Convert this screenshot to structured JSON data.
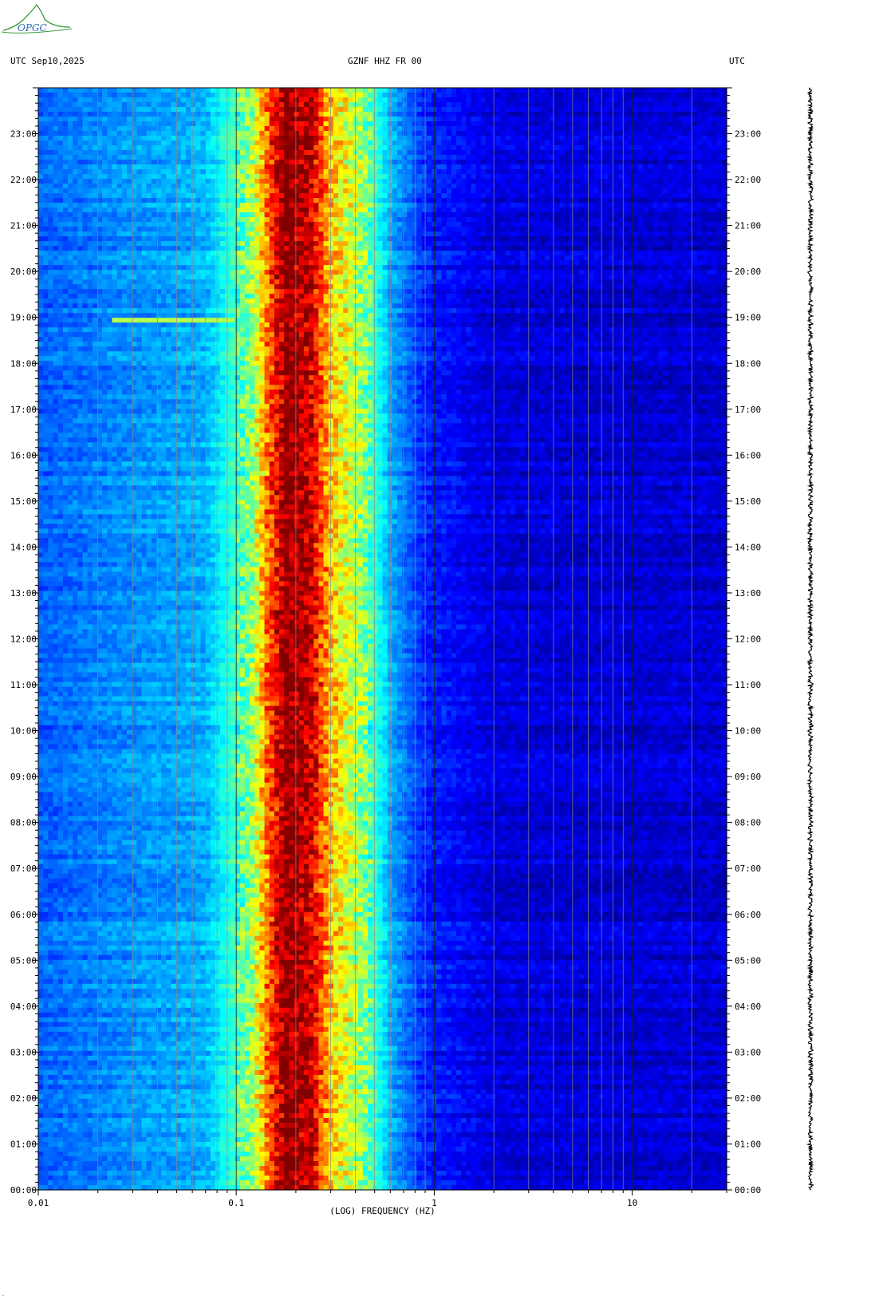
{
  "header": {
    "left_label": "UTC  Sep10,2025",
    "center_label": "GZNF HHZ FR 00",
    "right_label": "UTC"
  },
  "logo": {
    "text": "OPGC"
  },
  "colors": {
    "background": "#ffffff",
    "low": "#0018c8",
    "high": "#7a0000"
  },
  "chart_data": {
    "type": "heatmap",
    "title": "",
    "xlabel": "(LOG) FREQUENCY (HZ)",
    "ylabel": "",
    "x_scale": "log",
    "xlim": [
      0.01,
      30
    ],
    "ylim_hours": [
      0,
      24
    ],
    "x_ticks": [
      {
        "value": 0.01,
        "label": "0.01"
      },
      {
        "value": 0.1,
        "label": "0.1"
      },
      {
        "value": 1,
        "label": "1"
      },
      {
        "value": 10,
        "label": "10"
      }
    ],
    "y_ticks": [
      "00:00",
      "01:00",
      "02:00",
      "03:00",
      "04:00",
      "05:00",
      "06:00",
      "07:00",
      "08:00",
      "09:00",
      "10:00",
      "11:00",
      "12:00",
      "13:00",
      "14:00",
      "15:00",
      "16:00",
      "17:00",
      "18:00",
      "19:00",
      "20:00",
      "21:00",
      "22:00",
      "23:00"
    ],
    "grid": true,
    "band_profile": [
      {
        "freq": 0.01,
        "level": 0.22
      },
      {
        "freq": 0.024,
        "level": 0.26
      },
      {
        "freq": 0.07,
        "level": 0.3
      },
      {
        "freq": 0.12,
        "level": 0.52
      },
      {
        "freq": 0.145,
        "level": 0.78
      },
      {
        "freq": 0.18,
        "level": 1.0
      },
      {
        "freq": 0.24,
        "level": 0.92
      },
      {
        "freq": 0.3,
        "level": 0.68
      },
      {
        "freq": 0.45,
        "level": 0.5
      },
      {
        "freq": 0.6,
        "level": 0.3
      },
      {
        "freq": 0.9,
        "level": 0.16
      },
      {
        "freq": 2.0,
        "level": 0.09
      },
      {
        "freq": 30,
        "level": 0.08
      }
    ],
    "events": [
      {
        "hour": 18.93,
        "freq_min": 0.024,
        "freq_max": 0.1,
        "level": 0.55
      }
    ]
  }
}
